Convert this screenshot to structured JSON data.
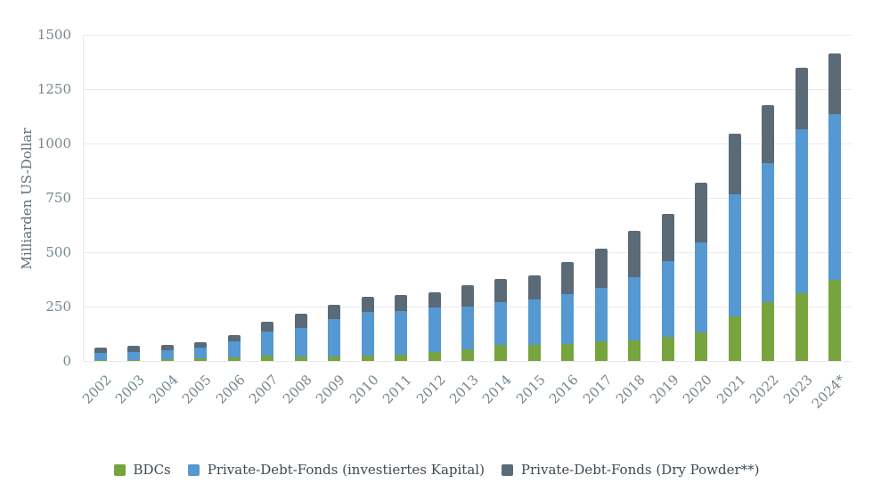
{
  "chart_data": {
    "type": "bar",
    "stacked": true,
    "title": "",
    "xlabel": "",
    "ylabel": "Milliarden US-Dollar",
    "ylim": [
      0,
      1500
    ],
    "y_ticks": [
      0,
      250,
      500,
      750,
      1000,
      1250,
      1500
    ],
    "grid": true,
    "legend_position": "bottom",
    "categories": [
      "2002",
      "2003",
      "2004",
      "2005",
      "2006",
      "2007",
      "2008",
      "2009",
      "2010",
      "2011",
      "2012",
      "2013",
      "2014",
      "2015",
      "2016",
      "2017",
      "2018",
      "2019",
      "2020",
      "2021",
      "2022",
      "2023",
      "2024*"
    ],
    "series": [
      {
        "name": "BDCs",
        "color": "#77a43d",
        "values": [
          5,
          5,
          7,
          12,
          16,
          23,
          20,
          20,
          23,
          28,
          41,
          55,
          72,
          72,
          78,
          89,
          95,
          110,
          130,
          205,
          272,
          312,
          372
        ]
      },
      {
        "name": "Private-Debt-Fonds (investiertes Kapital)",
        "color": "#5598d2",
        "values": [
          33,
          38,
          43,
          50,
          74,
          114,
          130,
          172,
          203,
          202,
          203,
          196,
          198,
          212,
          230,
          247,
          292,
          348,
          416,
          563,
          639,
          753,
          762
        ]
      },
      {
        "name": "Private-Debt-Fonds (Dry Powder**)",
        "color": "#5a6a77",
        "values": [
          22,
          25,
          25,
          26,
          28,
          45,
          66,
          68,
          69,
          72,
          72,
          99,
          106,
          108,
          147,
          182,
          211,
          218,
          274,
          277,
          266,
          283,
          278
        ]
      }
    ]
  },
  "colors": {
    "grid": "#e9eaec",
    "tick_text": "#76868f",
    "axis_title_text": "#5c6e7c",
    "legend_text": "#3e4a55",
    "background": "#ffffff"
  }
}
